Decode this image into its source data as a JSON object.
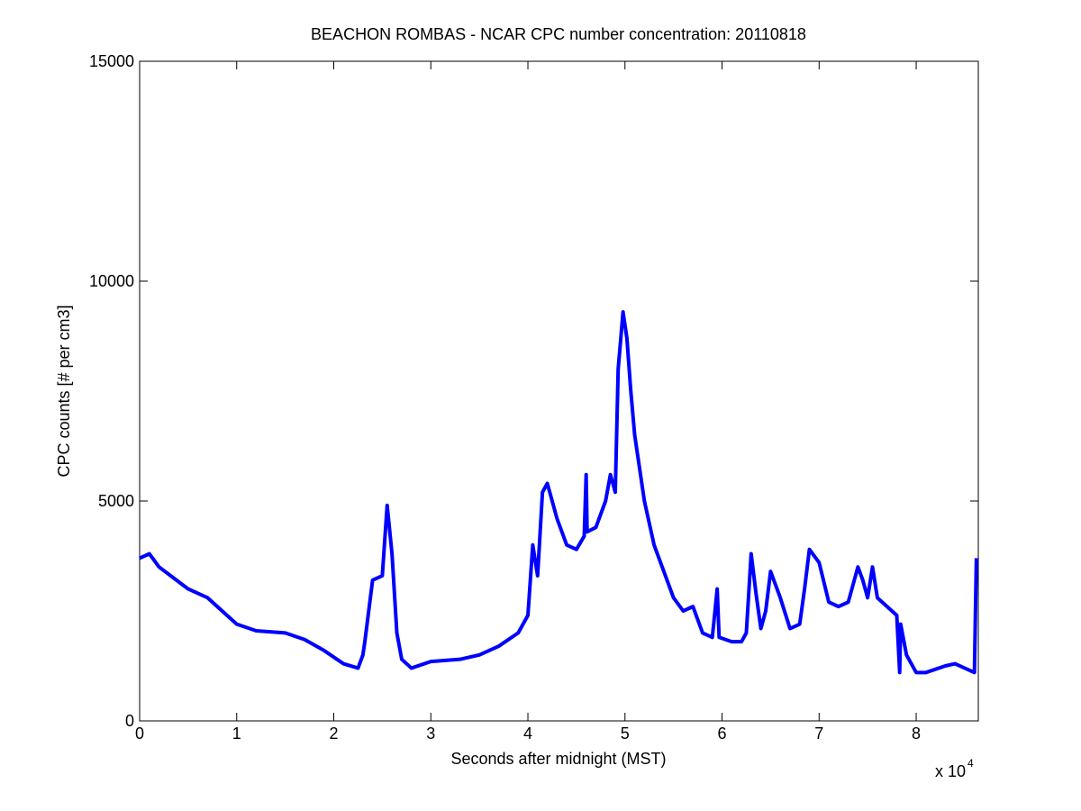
{
  "chart_data": {
    "type": "line",
    "title": "BEACHON ROMBAS - NCAR CPC number concentration: 20110818",
    "x_label": "Seconds after midnight (MST)",
    "y_label": "CPC counts [# per cm3]",
    "x_multiplier": {
      "base": "x 10",
      "exponent": "4"
    },
    "xlim": [
      0,
      86400
    ],
    "ylim": [
      0,
      15000
    ],
    "xticks": [
      0,
      {
        "value": 10000,
        "label": "1"
      },
      {
        "value": 20000,
        "label": "2"
      },
      {
        "value": 30000,
        "label": "3"
      },
      {
        "value": 40000,
        "label": "4"
      },
      {
        "value": 50000,
        "label": "5"
      },
      {
        "value": 60000,
        "label": "6"
      },
      {
        "value": 70000,
        "label": "7"
      },
      {
        "value": 80000,
        "label": "8"
      }
    ],
    "yticks": [
      0,
      5000,
      10000,
      15000
    ],
    "grid": false,
    "series": [
      {
        "color": "#0000ff",
        "x": [
          0,
          1000,
          2000,
          5000,
          7000,
          10000,
          12000,
          15000,
          17000,
          19000,
          21000,
          22500,
          23000,
          23200,
          24000,
          25000,
          25500,
          26000,
          26500,
          27000,
          28000,
          30000,
          33000,
          35000,
          37000,
          39000,
          40000,
          40500,
          41000,
          41500,
          42000,
          43000,
          44000,
          45000,
          45800,
          46000,
          46100,
          47000,
          48000,
          48500,
          49000,
          49300,
          49800,
          50200,
          50600,
          51000,
          52000,
          53000,
          54000,
          55000,
          56000,
          57000,
          58000,
          59000,
          59500,
          59700,
          61000,
          62000,
          62500,
          63000,
          63500,
          64000,
          64500,
          65000,
          66000,
          67000,
          68000,
          68500,
          69000,
          70000,
          71000,
          72000,
          73000,
          74000,
          74500,
          75000,
          75500,
          76000,
          77000,
          78000,
          78300,
          78400,
          79000,
          80000,
          81000,
          83000,
          84000,
          85000,
          86000,
          86200
        ],
        "values": [
          3700,
          3800,
          3500,
          3000,
          2800,
          2200,
          2050,
          2000,
          1850,
          1600,
          1300,
          1200,
          1500,
          1800,
          3200,
          3300,
          4900,
          3800,
          2000,
          1400,
          1200,
          1350,
          1400,
          1500,
          1700,
          2000,
          2400,
          4000,
          3300,
          5200,
          5400,
          4600,
          4000,
          3900,
          4200,
          5600,
          4300,
          4400,
          5000,
          5600,
          5200,
          8000,
          9300,
          8700,
          7500,
          6500,
          5000,
          4000,
          3400,
          2800,
          2500,
          2600,
          2000,
          1900,
          3000,
          1900,
          1800,
          1800,
          2000,
          3800,
          2900,
          2100,
          2500,
          3400,
          2800,
          2100,
          2200,
          3000,
          3900,
          3600,
          2700,
          2600,
          2700,
          3500,
          3200,
          2800,
          3500,
          2800,
          2600,
          2400,
          1100,
          2200,
          1500,
          1100,
          1100,
          1250,
          1300,
          1200,
          1100,
          3700
        ]
      }
    ]
  }
}
